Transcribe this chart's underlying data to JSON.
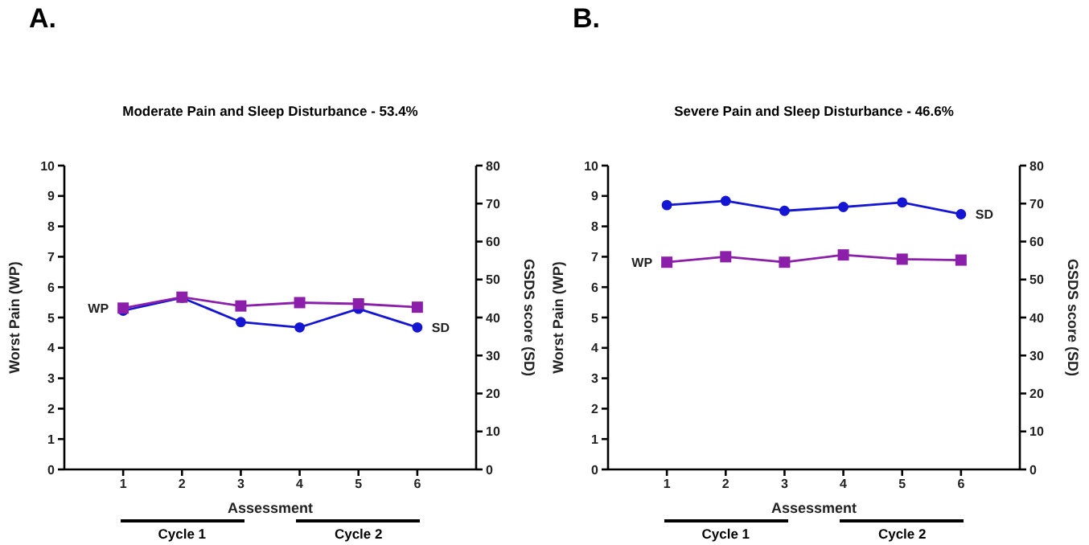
{
  "chart_data": [
    {
      "type": "line",
      "title": "Moderate Pain and Sleep Disturbance - 53.4%",
      "xlabel": "Assessment",
      "ylabel": "Worst Pain (WP)",
      "y2label": "GSDS score (SD)",
      "annotations": [
        "A.",
        "Cycle 1",
        "Cycle 2"
      ],
      "x": [
        1,
        2,
        3,
        4,
        5,
        6
      ],
      "xlim": [
        0,
        7
      ],
      "xticks": [
        1,
        2,
        3,
        4,
        5,
        6
      ],
      "ylim": [
        0,
        10
      ],
      "yticks": [
        0,
        1,
        2,
        3,
        4,
        5,
        6,
        7,
        8,
        9,
        10
      ],
      "y2lim": [
        0,
        80
      ],
      "y2ticks": [
        0,
        10,
        20,
        30,
        40,
        50,
        60,
        70,
        80
      ],
      "grid": false,
      "legend": false,
      "series": [
        {
          "name": "WP",
          "color": "#8b1fa9",
          "marker": "square",
          "values": [
            5.31,
            5.67,
            5.38,
            5.49,
            5.45,
            5.34
          ]
        },
        {
          "name": "SD",
          "color": "#1515d4",
          "marker": "circle",
          "axis": "y2",
          "values": [
            41.8,
            45.2,
            38.8,
            37.4,
            42.3,
            37.4
          ]
        }
      ]
    },
    {
      "type": "line",
      "title": "Severe Pain and Sleep Disturbance - 46.6%",
      "xlabel": "Assessment",
      "ylabel": "Worst Pain (WP)",
      "y2label": "GSDS score (SD)",
      "annotations": [
        "B.",
        "Cycle 1",
        "Cycle 2"
      ],
      "x": [
        1,
        2,
        3,
        4,
        5,
        6
      ],
      "xlim": [
        0,
        7
      ],
      "xticks": [
        1,
        2,
        3,
        4,
        5,
        6
      ],
      "ylim": [
        0,
        10
      ],
      "yticks": [
        0,
        1,
        2,
        3,
        4,
        5,
        6,
        7,
        8,
        9,
        10
      ],
      "y2lim": [
        0,
        80
      ],
      "y2ticks": [
        0,
        10,
        20,
        30,
        40,
        50,
        60,
        70,
        80
      ],
      "grid": false,
      "legend": false,
      "series": [
        {
          "name": "WP",
          "color": "#8b1fa9",
          "marker": "square",
          "values": [
            6.82,
            7.0,
            6.82,
            7.06,
            6.92,
            6.89
          ]
        },
        {
          "name": "SD",
          "color": "#1515d4",
          "marker": "circle",
          "axis": "y2",
          "values": [
            69.6,
            70.7,
            68.1,
            69.1,
            70.3,
            67.2
          ]
        }
      ]
    }
  ]
}
